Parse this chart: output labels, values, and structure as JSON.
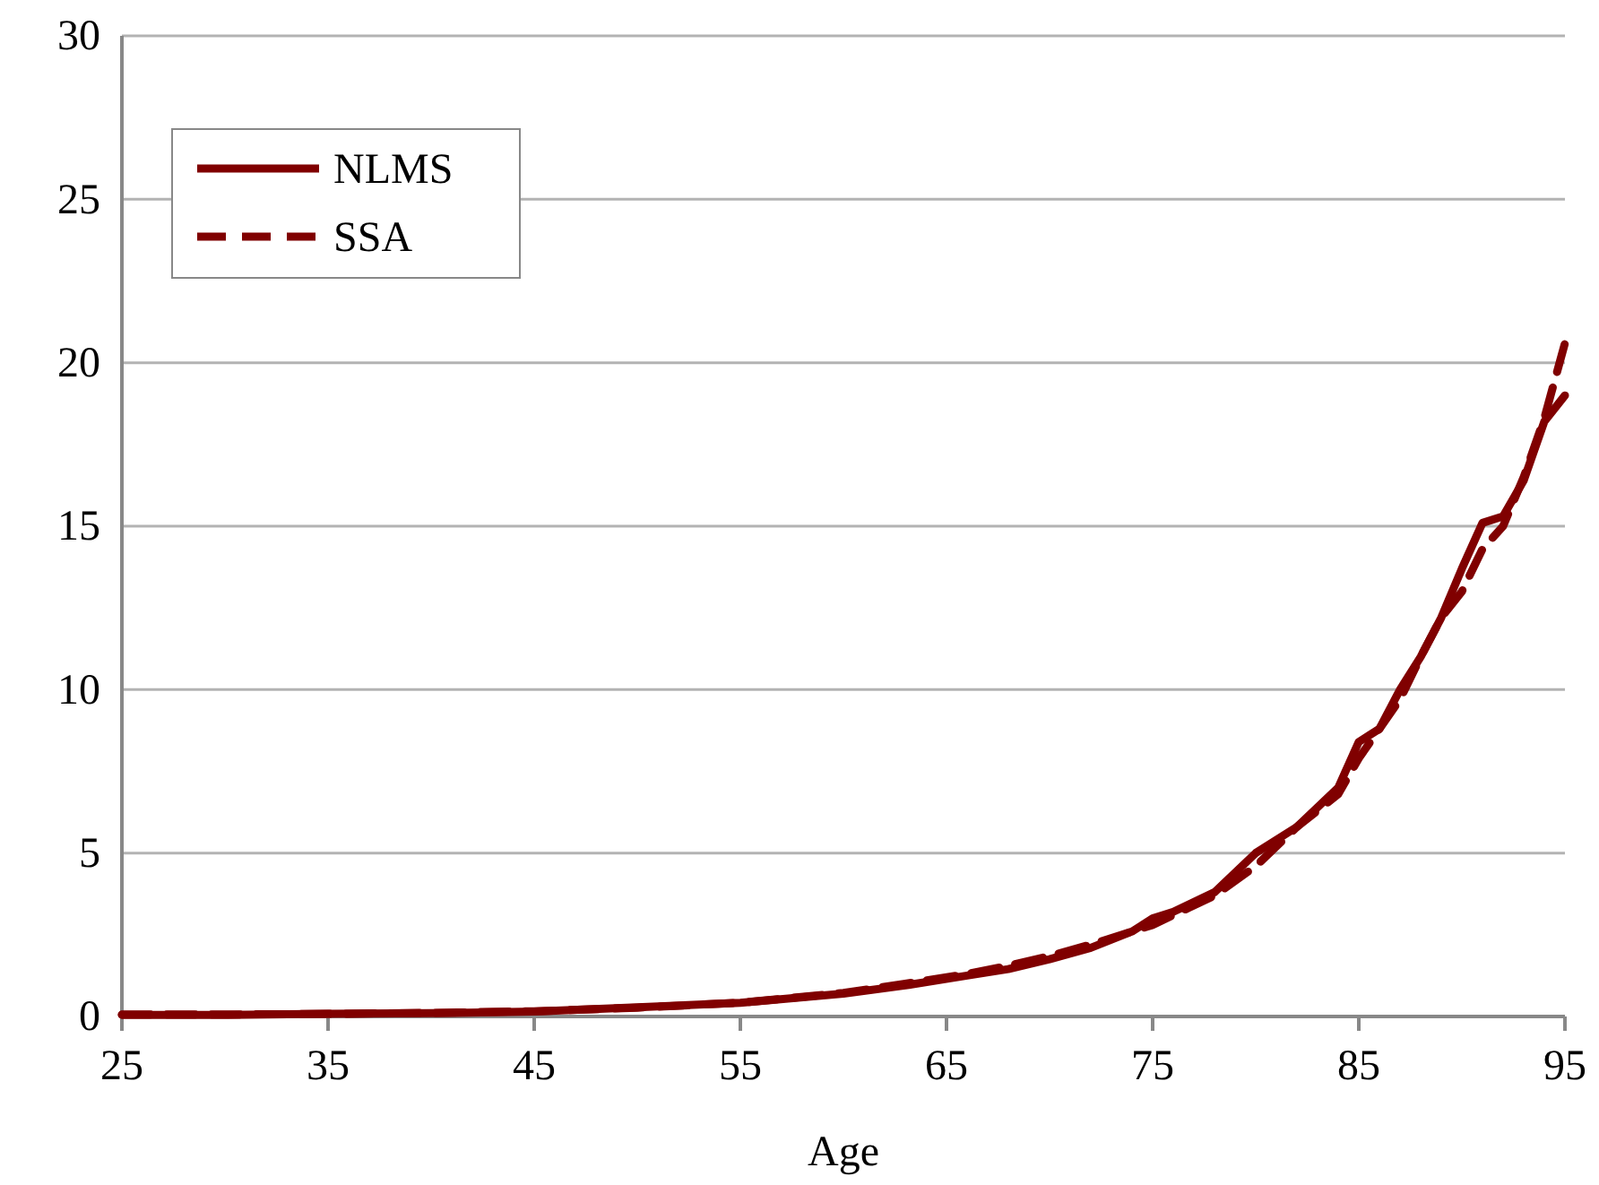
{
  "chart_data": {
    "type": "line",
    "xlabel": "Age",
    "x": [
      25,
      30,
      35,
      40,
      45,
      50,
      55,
      60,
      63,
      66,
      68,
      70,
      72,
      74,
      75,
      76,
      78,
      80,
      82,
      84,
      85,
      86,
      87,
      88,
      89,
      90,
      91,
      92,
      93,
      94,
      95
    ],
    "series": [
      {
        "name": "NLMS",
        "color": "#800000",
        "line_style": "solid",
        "values": [
          0.05,
          0.05,
          0.08,
          0.1,
          0.15,
          0.28,
          0.42,
          0.7,
          0.95,
          1.25,
          1.45,
          1.75,
          2.1,
          2.6,
          3.0,
          3.2,
          3.8,
          5.0,
          5.8,
          7.0,
          8.4,
          8.8,
          10.0,
          11.0,
          12.2,
          13.7,
          15.1,
          15.3,
          16.4,
          18.2,
          19.0
        ]
      },
      {
        "name": "SSA",
        "color": "#800000",
        "line_style": "dashed",
        "values": [
          0.06,
          0.06,
          0.08,
          0.11,
          0.16,
          0.27,
          0.42,
          0.72,
          1.0,
          1.3,
          1.55,
          1.85,
          2.2,
          2.6,
          2.8,
          3.1,
          3.7,
          4.6,
          5.8,
          6.8,
          7.9,
          8.8,
          9.7,
          11.0,
          12.2,
          13.0,
          14.3,
          15.0,
          16.5,
          18.3,
          20.6
        ]
      }
    ],
    "xlim": [
      25,
      95
    ],
    "xticks": [
      25,
      35,
      45,
      55,
      65,
      75,
      85,
      95
    ],
    "ylim": [
      0,
      30
    ],
    "yticks": [
      0,
      5,
      10,
      15,
      20,
      25,
      30
    ],
    "grid": "y",
    "legend": "top left",
    "marker": "none"
  }
}
